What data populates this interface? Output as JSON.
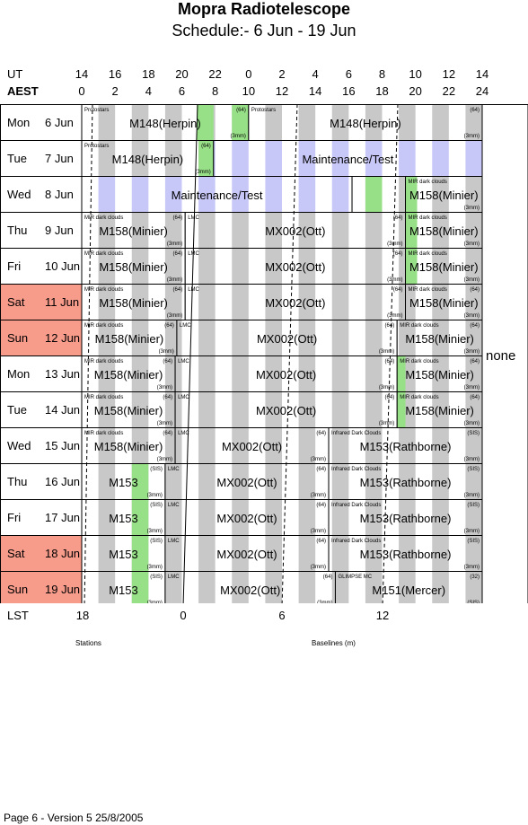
{
  "header": {
    "title": "Mopra Radiotelescope",
    "subtitle": "Schedule:- 6  Jun - 19 Jun"
  },
  "axis": {
    "ut_label": "UT",
    "aest_label": "AEST",
    "lst_label": "LST",
    "ut_ticks": [
      "14",
      "16",
      "18",
      "20",
      "22",
      "0",
      "2",
      "4",
      "6",
      "8",
      "10",
      "12",
      "14"
    ],
    "aest_ticks": [
      "0",
      "2",
      "4",
      "6",
      "8",
      "10",
      "12",
      "14",
      "16",
      "18",
      "20",
      "22",
      "24"
    ],
    "lst_ticks": [
      "18",
      "0",
      "6",
      "12"
    ]
  },
  "side_note": "none",
  "colors": {
    "grey": "#c8c8c8",
    "blue": "#c8c8f8",
    "green": "#98e088",
    "weekend": "#f79b8b"
  },
  "rows": [
    {
      "day": "Mon",
      "date": "6  Jun",
      "weekend": false,
      "blocks": [
        {
          "start": 0,
          "end": 10,
          "label": "M148(Herpin)",
          "top": "Protostars",
          "tr": "(64)",
          "br": "(3mm)",
          "shade": "",
          "green": [
            [
              6.9,
              7.9
            ],
            [
              9,
              10
            ]
          ]
        },
        {
          "start": 10,
          "end": 24,
          "label": "M148(Herpin)",
          "top": "Protostars",
          "tr": "(64)",
          "br": "(3mm)",
          "shade": "",
          "green": []
        }
      ]
    },
    {
      "day": "Tue",
      "date": "7  Jun",
      "weekend": false,
      "blocks": [
        {
          "start": 0,
          "end": 7.9,
          "label": "M148(Herpin)",
          "top": "Protostars",
          "tr": "(64)",
          "br": "(3mm)",
          "shade": "",
          "green": [
            [
              7,
              7.9
            ]
          ]
        },
        {
          "start": 7.9,
          "end": 24,
          "label": "Maintenance/Test",
          "top": "",
          "tr": "",
          "br": "",
          "shade": "blue",
          "green": []
        }
      ]
    },
    {
      "day": "Wed",
      "date": "8  Jun",
      "weekend": false,
      "blocks": [
        {
          "start": 0,
          "end": 16.2,
          "label": "Maintenance/Test",
          "top": "",
          "tr": "",
          "br": "",
          "shade": "blue",
          "green": []
        },
        {
          "start": 16.2,
          "end": 19.4,
          "label": "",
          "top": "",
          "tr": "",
          "br": "",
          "shade": "",
          "green": [
            [
              17,
              18
            ]
          ]
        },
        {
          "start": 19.4,
          "end": 24,
          "label": "M158(Minier)",
          "top": "MIR dark clouds",
          "tr": "",
          "br": "(3mm)",
          "shade": "",
          "green": [
            [
              19.4,
              20.1
            ]
          ]
        }
      ]
    },
    {
      "day": "Thu",
      "date": "9  Jun",
      "weekend": false,
      "blocks": [
        {
          "start": 0,
          "end": 6.2,
          "label": "M158(Minier)",
          "top": "MIR dark clouds",
          "tr": "(64)",
          "br": "(3mm)",
          "shade": "",
          "green": []
        },
        {
          "start": 6.2,
          "end": 19.4,
          "label": "MX002(Ott)",
          "top": "LMC",
          "tr": "(64)",
          "br": "(3mm)",
          "shade": "",
          "green": []
        },
        {
          "start": 19.4,
          "end": 24,
          "label": "M158(Minier)",
          "top": "MIR dark clouds",
          "tr": "",
          "br": "(3mm)",
          "shade": "",
          "green": [
            [
              19.4,
              20.1
            ]
          ]
        }
      ]
    },
    {
      "day": "Fri",
      "date": "10 Jun",
      "weekend": false,
      "blocks": [
        {
          "start": 0,
          "end": 6.2,
          "label": "M158(Minier)",
          "top": "MIR dark clouds",
          "tr": "(64)",
          "br": "(3mm)",
          "shade": "",
          "green": []
        },
        {
          "start": 6.2,
          "end": 19.4,
          "label": "MX002(Ott)",
          "top": "LMC",
          "tr": "(64)",
          "br": "(3mm)",
          "shade": "",
          "green": []
        },
        {
          "start": 19.4,
          "end": 24,
          "label": "M158(Minier)",
          "top": "MIR dark clouds",
          "tr": "",
          "br": "(3mm)",
          "shade": "",
          "green": [
            [
              19.4,
              20.1
            ]
          ]
        }
      ]
    },
    {
      "day": "Sat",
      "date": "11 Jun",
      "weekend": true,
      "blocks": [
        {
          "start": 0,
          "end": 6.2,
          "label": "M158(Minier)",
          "top": "MIR dark clouds",
          "tr": "(64)",
          "br": "(3mm)",
          "shade": "",
          "green": []
        },
        {
          "start": 6.2,
          "end": 19.4,
          "label": "MX002(Ott)",
          "top": "LMC",
          "tr": "(64)",
          "br": "(3mm)",
          "shade": "",
          "green": []
        },
        {
          "start": 19.4,
          "end": 24,
          "label": "M158(Minier)",
          "top": "MIR dark clouds",
          "tr": "(64)",
          "br": "(3mm)",
          "shade": "",
          "green": []
        }
      ]
    },
    {
      "day": "Sun",
      "date": "12 Jun",
      "weekend": true,
      "blocks": [
        {
          "start": 0,
          "end": 5.7,
          "label": "M158(Minier)",
          "top": "MIR dark clouds",
          "tr": "(64)",
          "br": "(3mm)",
          "shade": "",
          "green": []
        },
        {
          "start": 5.7,
          "end": 18.9,
          "label": "MX002(Ott)",
          "top": "LMC",
          "tr": "(64)",
          "br": "(3mm)",
          "shade": "",
          "green": []
        },
        {
          "start": 18.9,
          "end": 24,
          "label": "M158(Minier)",
          "top": "MIR dark clouds",
          "tr": "(64)",
          "br": "(3mm)",
          "shade": "",
          "green": []
        }
      ]
    },
    {
      "day": "Mon",
      "date": "13 Jun",
      "weekend": false,
      "blocks": [
        {
          "start": 0,
          "end": 5.6,
          "label": "M158(Minier)",
          "top": "MIR dark clouds",
          "tr": "(64)",
          "br": "(3mm)",
          "shade": "",
          "green": []
        },
        {
          "start": 5.6,
          "end": 18.9,
          "label": "MX002(Ott)",
          "top": "LMC",
          "tr": "(64)",
          "br": "(3mm)",
          "shade": "",
          "green": []
        },
        {
          "start": 18.9,
          "end": 24,
          "label": "M158(Minier)",
          "top": "MIR dark clouds",
          "tr": "(64)",
          "br": "(3mm)",
          "shade": "",
          "green": [
            [
              18.9,
              19.4
            ]
          ]
        }
      ]
    },
    {
      "day": "Tue",
      "date": "14 Jun",
      "weekend": false,
      "blocks": [
        {
          "start": 0,
          "end": 5.6,
          "label": "M158(Minier)",
          "top": "MIR dark clouds",
          "tr": "(64)",
          "br": "(3mm)",
          "shade": "",
          "green": []
        },
        {
          "start": 5.6,
          "end": 18.9,
          "label": "MX002(Ott)",
          "top": "LMC",
          "tr": "(64)",
          "br": "(3mm)",
          "shade": "",
          "green": []
        },
        {
          "start": 18.9,
          "end": 24,
          "label": "M158(Minier)",
          "top": "MIR dark clouds",
          "tr": "(64)",
          "br": "(3mm)",
          "shade": "",
          "green": [
            [
              18.9,
              19.4
            ]
          ]
        }
      ]
    },
    {
      "day": "Wed",
      "date": "15 Jun",
      "weekend": false,
      "blocks": [
        {
          "start": 0,
          "end": 5.6,
          "label": "M158(Minier)",
          "top": "MIR dark clouds",
          "tr": "(64)",
          "br": "(3mm)",
          "shade": "",
          "green": []
        },
        {
          "start": 5.6,
          "end": 14.8,
          "label": "MX002(Ott)",
          "top": "LMC",
          "tr": "(64)",
          "br": "(3mm)",
          "shade": "",
          "green": []
        },
        {
          "start": 14.8,
          "end": 24,
          "label": "M153(Rathborne)",
          "top": "Infrared Dark Clouds",
          "tr": "(SIS)",
          "br": "(3mm)",
          "shade": "",
          "green": []
        }
      ]
    },
    {
      "day": "Thu",
      "date": "16 Jun",
      "weekend": false,
      "blocks": [
        {
          "start": 0,
          "end": 5,
          "label": "M153",
          "top": "",
          "tr": "(SIS)",
          "br": "(3mm)",
          "shade": "",
          "green": [
            [
              3,
              4
            ]
          ]
        },
        {
          "start": 5,
          "end": 14.8,
          "label": "MX002(Ott)",
          "top": "LMC",
          "tr": "(64)",
          "br": "(3mm)",
          "shade": "",
          "green": []
        },
        {
          "start": 14.8,
          "end": 24,
          "label": "M153(Rathborne)",
          "top": "Infrared Dark Clouds",
          "tr": "(SIS)",
          "br": "(3mm)",
          "shade": "",
          "green": []
        }
      ]
    },
    {
      "day": "Fri",
      "date": "17 Jun",
      "weekend": false,
      "blocks": [
        {
          "start": 0,
          "end": 5,
          "label": "M153",
          "top": "",
          "tr": "(SIS)",
          "br": "(3mm)",
          "shade": "",
          "green": [
            [
              3,
              4
            ]
          ]
        },
        {
          "start": 5,
          "end": 14.8,
          "label": "MX002(Ott)",
          "top": "LMC",
          "tr": "(64)",
          "br": "(3mm)",
          "shade": "",
          "green": []
        },
        {
          "start": 14.8,
          "end": 24,
          "label": "M153(Rathborne)",
          "top": "Infrared Dark Clouds",
          "tr": "(SIS)",
          "br": "(3mm)",
          "shade": "",
          "green": []
        }
      ]
    },
    {
      "day": "Sat",
      "date": "18 Jun",
      "weekend": true,
      "blocks": [
        {
          "start": 0,
          "end": 5,
          "label": "M153",
          "top": "",
          "tr": "(SIS)",
          "br": "(3mm)",
          "shade": "",
          "green": [
            [
              3,
              4
            ]
          ]
        },
        {
          "start": 5,
          "end": 14.8,
          "label": "MX002(Ott)",
          "top": "LMC",
          "tr": "(64)",
          "br": "(3mm)",
          "shade": "",
          "green": []
        },
        {
          "start": 14.8,
          "end": 24,
          "label": "M153(Rathborne)",
          "top": "Infrared Dark Clouds",
          "tr": "(SIS)",
          "br": "(3mm)",
          "shade": "",
          "green": []
        }
      ]
    },
    {
      "day": "Sun",
      "date": "19 Jun",
      "weekend": true,
      "blocks": [
        {
          "start": 0,
          "end": 5,
          "label": "M153",
          "top": "",
          "tr": "(SIS)",
          "br": "(3mm)",
          "shade": "",
          "green": [
            [
              3,
              4
            ]
          ]
        },
        {
          "start": 5,
          "end": 15.2,
          "label": "MX002(Ott)",
          "top": "LMC",
          "tr": "(64)",
          "br": "(3mm)",
          "shade": "",
          "green": []
        },
        {
          "start": 15.2,
          "end": 24,
          "label": "M151(Mercer)",
          "top": "GLIMPSE MC",
          "tr": "(32)",
          "br": "(SIS)",
          "shade": "",
          "green": []
        }
      ]
    }
  ],
  "footer": {
    "stations": "Stations",
    "baselines": "Baselines (m)",
    "page": "Page 6 - Version 5  25/8/2005"
  }
}
